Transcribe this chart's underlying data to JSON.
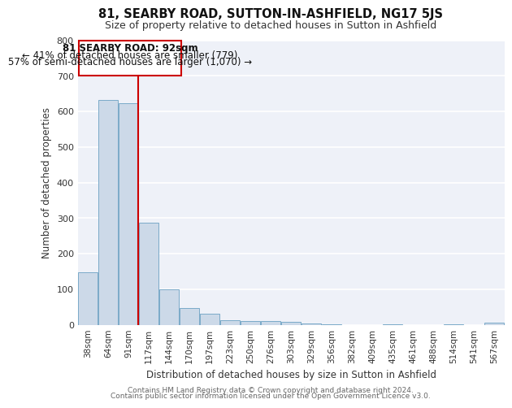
{
  "title": "81, SEARBY ROAD, SUTTON-IN-ASHFIELD, NG17 5JS",
  "subtitle": "Size of property relative to detached houses in Sutton in Ashfield",
  "xlabel": "Distribution of detached houses by size in Sutton in Ashfield",
  "ylabel": "Number of detached properties",
  "categories": [
    "38sqm",
    "64sqm",
    "91sqm",
    "117sqm",
    "144sqm",
    "170sqm",
    "197sqm",
    "223sqm",
    "250sqm",
    "276sqm",
    "303sqm",
    "329sqm",
    "356sqm",
    "382sqm",
    "409sqm",
    "435sqm",
    "461sqm",
    "488sqm",
    "514sqm",
    "541sqm",
    "567sqm"
  ],
  "values": [
    148,
    633,
    622,
    288,
    100,
    46,
    31,
    13,
    10,
    10,
    7,
    3,
    2,
    0,
    0,
    2,
    0,
    0,
    2,
    0,
    5
  ],
  "bar_color": "#ccd9e8",
  "bar_edge_color": "#7aaac8",
  "property_line_index": 2,
  "annotation_line1": "81 SEARBY ROAD: 92sqm",
  "annotation_line2": "← 41% of detached houses are smaller (779)",
  "annotation_line3": "57% of semi-detached houses are larger (1,070) →",
  "annotation_box_color": "#cc0000",
  "ylim": [
    0,
    800
  ],
  "yticks": [
    0,
    100,
    200,
    300,
    400,
    500,
    600,
    700,
    800
  ],
  "bg_color": "#eef1f8",
  "grid_color": "#ffffff",
  "footer_line1": "Contains HM Land Registry data © Crown copyright and database right 2024.",
  "footer_line2": "Contains public sector information licensed under the Open Government Licence v3.0.",
  "title_fontsize": 10.5,
  "subtitle_fontsize": 9,
  "axis_label_fontsize": 8.5,
  "tick_fontsize": 7.5,
  "annotation_fontsize": 8.5,
  "footer_fontsize": 6.5
}
